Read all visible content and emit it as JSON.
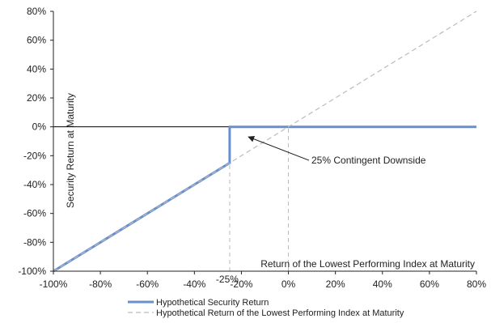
{
  "chart_data": {
    "type": "line",
    "title": "",
    "xlabel": "Return of the Lowest Performing Index at Maturity",
    "ylabel": "Security Return at Maturity",
    "xlim": [
      -100,
      80
    ],
    "ylim": [
      -100,
      80
    ],
    "x_ticks": [
      -100,
      -80,
      -60,
      -40,
      -20,
      0,
      20,
      40,
      60,
      80
    ],
    "y_ticks": [
      -100,
      -80,
      -60,
      -40,
      -20,
      0,
      20,
      40,
      60,
      80
    ],
    "x_tick_labels": [
      "-100%",
      "-80%",
      "-60%",
      "-40%",
      "-20%",
      "0%",
      "20%",
      "40%",
      "60%",
      "80%"
    ],
    "y_tick_labels": [
      "-100%",
      "-80%",
      "-60%",
      "-40%",
      "-20%",
      "0%",
      "20%",
      "40%",
      "60%",
      "80%"
    ],
    "grid": false,
    "legend_position": "bottom",
    "series": [
      {
        "name": "Hypothetical Security Return",
        "color": "#6a8fcf",
        "style": "solid",
        "x": [
          -100,
          -25,
          -25,
          0,
          80
        ],
        "y": [
          -100,
          -25,
          0,
          0,
          0
        ]
      },
      {
        "name": "Hypothetical Return of the Lowest Performing Index at Maturity",
        "color": "#bbbbbb",
        "style": "dashed",
        "x": [
          -100,
          80
        ],
        "y": [
          -100,
          80
        ]
      }
    ],
    "reference_lines": [
      {
        "axis": "y",
        "value": 0,
        "color": "#000000"
      },
      {
        "axis": "x",
        "value": -25,
        "color": "#bbbbbb",
        "style": "dashed"
      },
      {
        "axis": "x",
        "value": 0,
        "color": "#bbbbbb",
        "style": "dashed"
      }
    ],
    "annotations": [
      {
        "text": "25% Contingent Downside",
        "arrow_to": [
          -17,
          -7
        ]
      },
      {
        "text": "-25%",
        "at_x": -25
      }
    ]
  }
}
